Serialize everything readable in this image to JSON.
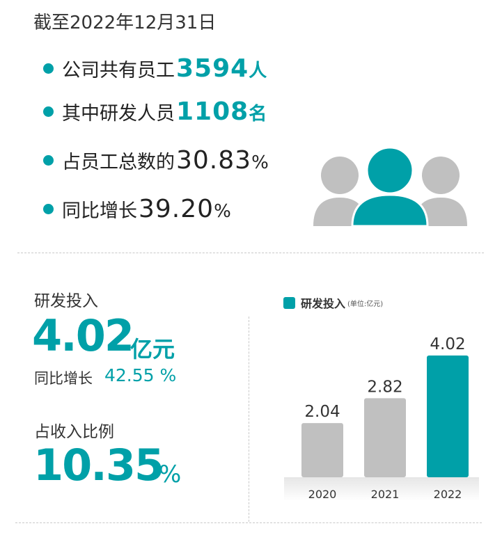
{
  "header": {
    "title": "截至2022年12月31日"
  },
  "bullets": [
    {
      "label": "公司共有员工",
      "value": "3594",
      "unit": "人"
    },
    {
      "label": "其中研发人员",
      "value": "1108",
      "unit": "名"
    },
    {
      "label": "占员工总数的",
      "value": "30.83",
      "unit": "%"
    },
    {
      "label": "同比增长",
      "value": "39.20",
      "unit": "%"
    }
  ],
  "rd": {
    "label": "研发投入",
    "value": "4.02",
    "unit": "亿元",
    "growth_label": "同比增长",
    "growth_value": "42.55",
    "growth_unit": "%",
    "ratio_label": "占收入比例",
    "ratio_value": "10.35",
    "ratio_unit": "%"
  },
  "icons": {
    "people": "people-group-icon"
  },
  "colors": {
    "accent": "#00a0a8",
    "bar_gray": "#c0c0c0"
  },
  "chart_data": {
    "type": "bar",
    "legend": "研发投入",
    "legend_unit": "(单位:亿元)",
    "legend_placement": "top-left",
    "categories": [
      "2020",
      "2021",
      "2022"
    ],
    "values": [
      2.04,
      2.82,
      4.02
    ],
    "value_labels": [
      "2.04",
      "2.82",
      "4.02"
    ],
    "bar_colors": [
      "#c0c0c0",
      "#c0c0c0",
      "#00a0a8"
    ],
    "grid": false
  }
}
